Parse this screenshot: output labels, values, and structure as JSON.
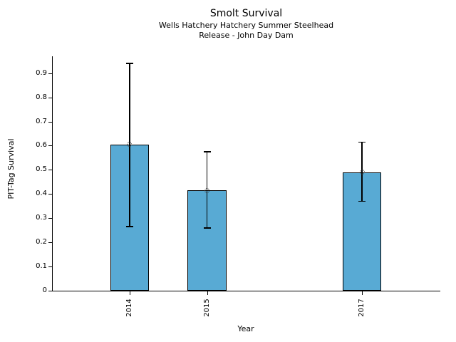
{
  "chart_data": {
    "type": "bar",
    "title": "Smolt Survival",
    "subtitle_lines": [
      "Wells Hatchery Hatchery Summer Steelhead",
      "Release - John Day Dam"
    ],
    "xlabel": "Year",
    "ylabel": "PIT-Tag Survival",
    "x": [
      2014,
      2015,
      2017
    ],
    "x_tick_labels": [
      "2014",
      "2015",
      "2017"
    ],
    "values": [
      0.605,
      0.415,
      0.49
    ],
    "error_low": [
      0.265,
      0.26,
      0.37
    ],
    "error_high": [
      0.94,
      0.575,
      0.615
    ],
    "bar_width_years": 0.5,
    "xlim": [
      2013,
      2018
    ],
    "ylim": [
      0,
      0.97
    ],
    "yticks": [
      0,
      0.1,
      0.2,
      0.3,
      0.4,
      0.5,
      0.6,
      0.7,
      0.8,
      0.9
    ],
    "ytick_labels": [
      "0",
      "0.1",
      "0.2",
      "0.3",
      "0.4",
      "0.5",
      "0.6",
      "0.7",
      "0.8",
      "0.9"
    ],
    "bar_color": "#58aad4",
    "bar_edge_color": "#000000",
    "error_color": "#000000",
    "marker": "open-circle",
    "grid": false,
    "legend": null
  }
}
